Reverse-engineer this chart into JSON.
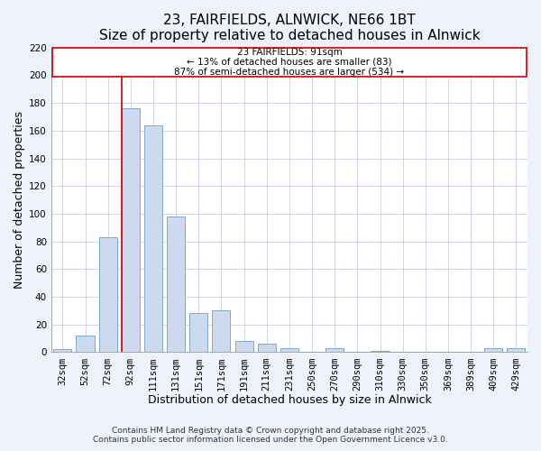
{
  "title": "23, FAIRFIELDS, ALNWICK, NE66 1BT",
  "subtitle": "Size of property relative to detached houses in Alnwick",
  "xlabel": "Distribution of detached houses by size in Alnwick",
  "ylabel": "Number of detached properties",
  "bar_labels": [
    "32sqm",
    "52sqm",
    "72sqm",
    "92sqm",
    "111sqm",
    "131sqm",
    "151sqm",
    "171sqm",
    "191sqm",
    "211sqm",
    "231sqm",
    "250sqm",
    "270sqm",
    "290sqm",
    "310sqm",
    "330sqm",
    "350sqm",
    "369sqm",
    "389sqm",
    "409sqm",
    "429sqm"
  ],
  "bar_values": [
    2,
    12,
    83,
    176,
    164,
    98,
    28,
    30,
    8,
    6,
    3,
    0,
    3,
    0,
    1,
    0,
    0,
    0,
    0,
    3,
    3
  ],
  "bar_color": "#ccd9ee",
  "bar_edge_color": "#7aabcc",
  "annotation_text_line1": "23 FAIRFIELDS: 91sqm",
  "annotation_text_line2": "← 13% of detached houses are smaller (83)",
  "annotation_text_line3": "87% of semi-detached houses are larger (534) →",
  "annotation_box_color": "#ffffff",
  "annotation_box_edge": "#cc0000",
  "marker_line_color": "#cc0000",
  "ylim": [
    0,
    220
  ],
  "yticks": [
    0,
    20,
    40,
    60,
    80,
    100,
    120,
    140,
    160,
    180,
    200,
    220
  ],
  "footer1": "Contains HM Land Registry data © Crown copyright and database right 2025.",
  "footer2": "Contains public sector information licensed under the Open Government Licence v3.0.",
  "bg_color": "#eef2fb",
  "plot_bg_color": "#ffffff",
  "grid_color": "#c8d0e8",
  "title_fontsize": 11,
  "axis_label_fontsize": 9,
  "tick_fontsize": 7.5,
  "footer_fontsize": 6.5,
  "annotation_fontsize": 7.5
}
